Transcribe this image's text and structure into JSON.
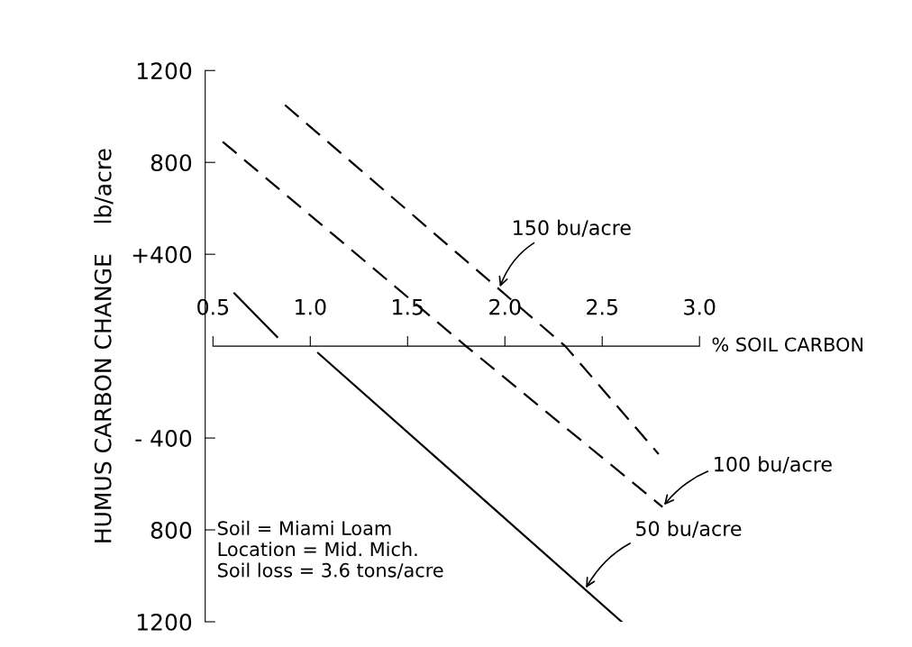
{
  "chart_data": {
    "type": "line",
    "xlabel": "% SOIL CARBON",
    "ylabel": "HUMUS CARBON CHANGE    lb/acre",
    "xlim": [
      0.46,
      3.0
    ],
    "xticks": [
      0.5,
      {
        "value": 1.0,
        "label": "1.0"
      },
      1.5,
      {
        "value": 2.0,
        "label": "2.0"
      },
      2.5,
      {
        "value": 3.0,
        "label": "3.0"
      }
    ],
    "ylim": [
      -1200,
      1200
    ],
    "yticks": [
      {
        "value": 1200,
        "label": "1200"
      },
      {
        "value": 800,
        "label": "800"
      },
      {
        "value": 400,
        "label": "+400"
      },
      {
        "value": -400,
        "label": "- 400"
      },
      {
        "value": -800,
        "label": "800"
      },
      {
        "value": -1200,
        "label": "1200"
      }
    ],
    "series": [
      {
        "color": "#000000",
        "line_style": "dashed",
        "x": [
          0.87,
          2.31,
          2.79
        ],
        "values": [
          1050,
          0,
          -470
        ]
      },
      {
        "color": "#000000",
        "line_style": "dashed",
        "x": [
          0.55,
          1.8,
          2.81
        ],
        "values": [
          890,
          0,
          -700
        ]
      },
      {
        "color": "#000000",
        "line_style": "solid",
        "x": [
          0.61,
          0.83,
          0.95,
          1.04,
          2.6
        ],
        "values": [
          230,
          40,
          null,
          -30,
          -1200
        ]
      }
    ],
    "annotations": [
      {
        "text": "150 bu/acre",
        "x": 1.97,
        "y": 248
      },
      {
        "text": "100 bu/acre",
        "x": 2.81,
        "y": -700
      },
      {
        "text": "50 bu/acre",
        "x": 2.41,
        "y": -1062
      },
      "Soil = Miami Loam\nLocation = Mid. Mich.\nSoil loss = 3.6 tons/acre"
    ],
    "grid": false,
    "legend": false
  }
}
